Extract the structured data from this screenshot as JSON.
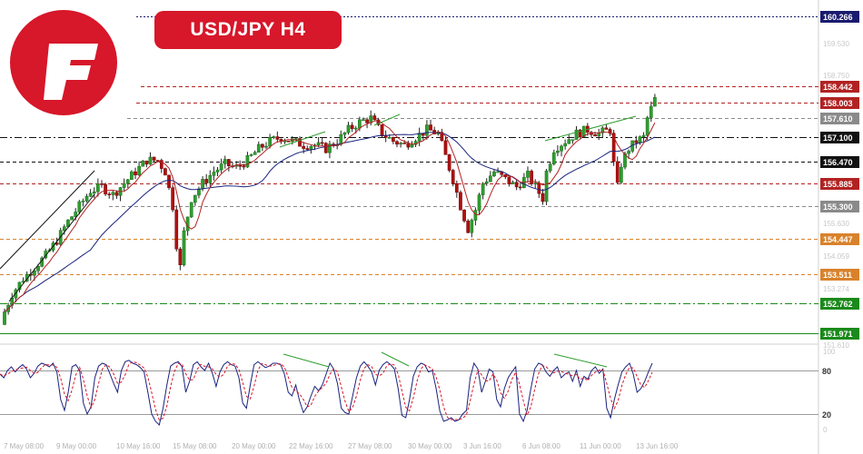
{
  "header": {
    "title": "USD/JPY  H4",
    "logo_icon": "brand-f-logo-icon",
    "brand_color": "#d7172a"
  },
  "chart_data": [
    {
      "type": "candlestick",
      "title": "USD/JPY  H4",
      "ylim": [
        151.5,
        160.6
      ],
      "levels": [
        {
          "value": 160.266,
          "label": "160.266",
          "color": "#1a1a6e",
          "style": "dotted"
        },
        {
          "value": 158.442,
          "label": "158.442",
          "color": "#b22222",
          "style": "dashed"
        },
        {
          "value": 158.003,
          "label": "158.003",
          "color": "#b22222",
          "style": "dashed"
        },
        {
          "value": 157.61,
          "label": "157.610",
          "color": "#8a8a8a",
          "style": "dashed"
        },
        {
          "value": 157.1,
          "label": "157.100",
          "color": "#111111",
          "style": "dashdot"
        },
        {
          "value": 156.47,
          "label": "156.470",
          "color": "#111111",
          "style": "dashed"
        },
        {
          "value": 155.885,
          "label": "155.885",
          "color": "#b22222",
          "style": "dashed"
        },
        {
          "value": 155.3,
          "label": "155.300",
          "color": "#8a8a8a",
          "style": "dashed"
        },
        {
          "value": 154.447,
          "label": "154.447",
          "color": "#d9822b",
          "style": "dashed"
        },
        {
          "value": 153.511,
          "label": "153.511",
          "color": "#d9822b",
          "style": "dashed"
        },
        {
          "value": 152.762,
          "label": "152.762",
          "color": "#1a8a1a",
          "style": "dashdot"
        },
        {
          "value": 151.971,
          "label": "151.971",
          "color": "#1a8a1a",
          "style": "solid"
        }
      ],
      "faint_ticks": [
        "159.530",
        "158.750",
        "155.630",
        "154.059",
        "153.274",
        "151.610"
      ],
      "x_tick_labels": [
        "7 May 08:00",
        "9 May 00:00",
        "10 May 16:00",
        "15 May 08:00",
        "20 May 00:00",
        "22 May 16:00",
        "27 May 08:00",
        "30 May 00:00",
        "3 Jun 16:00",
        "6 Jun 08:00",
        "11 Jun 00:00",
        "13 Jun 16:00"
      ],
      "close_path": [
        [
          0,
          152.3
        ],
        [
          3,
          153.0
        ],
        [
          6,
          153.4
        ],
        [
          9,
          153.7
        ],
        [
          12,
          154.0
        ],
        [
          15,
          154.4
        ],
        [
          18,
          154.9
        ],
        [
          21,
          155.3
        ],
        [
          24,
          155.7
        ],
        [
          27,
          155.8
        ],
        [
          30,
          155.6
        ],
        [
          33,
          155.9
        ],
        [
          36,
          156.2
        ],
        [
          39,
          156.5
        ],
        [
          42,
          156.5
        ],
        [
          44,
          156.2
        ],
        [
          46,
          155.3
        ],
        [
          47,
          154.3
        ],
        [
          48,
          153.7
        ],
        [
          49,
          154.6
        ],
        [
          51,
          155.5
        ],
        [
          54,
          155.9
        ],
        [
          57,
          156.2
        ],
        [
          60,
          156.4
        ],
        [
          63,
          156.3
        ],
        [
          66,
          156.5
        ],
        [
          69,
          156.8
        ],
        [
          72,
          157.0
        ],
        [
          75,
          157.1
        ],
        [
          78,
          157.0
        ],
        [
          81,
          156.9
        ],
        [
          84,
          156.9
        ],
        [
          87,
          156.8
        ],
        [
          90,
          157.0
        ],
        [
          93,
          157.3
        ],
        [
          96,
          157.5
        ],
        [
          99,
          157.6
        ],
        [
          102,
          157.2
        ],
        [
          105,
          157.0
        ],
        [
          108,
          156.9
        ],
        [
          111,
          157.1
        ],
        [
          114,
          157.3
        ],
        [
          117,
          157.2
        ],
        [
          119,
          156.6
        ],
        [
          121,
          156.0
        ],
        [
          123,
          155.3
        ],
        [
          125,
          154.7
        ],
        [
          127,
          155.2
        ],
        [
          129,
          155.9
        ],
        [
          132,
          156.2
        ],
        [
          135,
          156.0
        ],
        [
          138,
          155.8
        ],
        [
          141,
          156.1
        ],
        [
          143,
          155.8
        ],
        [
          145,
          155.5
        ],
        [
          146,
          156.2
        ],
        [
          148,
          156.8
        ],
        [
          151,
          157.0
        ],
        [
          154,
          157.2
        ],
        [
          157,
          157.3
        ],
        [
          160,
          157.2
        ],
        [
          163,
          157.3
        ],
        [
          164,
          156.4
        ],
        [
          165,
          155.8
        ],
        [
          166,
          156.4
        ],
        [
          168,
          156.8
        ],
        [
          170,
          157.0
        ],
        [
          172,
          157.1
        ],
        [
          173,
          157.6
        ],
        [
          175,
          158.1
        ]
      ],
      "candle_count": 175,
      "moving_averages": [
        {
          "color": "#1a237e"
        },
        {
          "color": "#b22222"
        }
      ],
      "trendlines_color": "#2e9e2e",
      "channel_color": "#111111"
    },
    {
      "type": "line",
      "indicator": "stochastic",
      "ylim": [
        0,
        100
      ],
      "levels": [
        {
          "value": 80,
          "label": "80"
        },
        {
          "value": 20,
          "label": "20"
        }
      ],
      "faint_ticks": [
        "100",
        "0"
      ],
      "series": [
        {
          "color": "#1a237e",
          "style": "solid"
        },
        {
          "color": "#d7172a",
          "style": "dashed"
        }
      ],
      "main_values": [
        75,
        70,
        80,
        85,
        78,
        84,
        88,
        82,
        70,
        76,
        86,
        90,
        88,
        85,
        90,
        78,
        40,
        25,
        50,
        85,
        88,
        80,
        35,
        20,
        30,
        70,
        86,
        90,
        88,
        75,
        62,
        50,
        80,
        92,
        94,
        90,
        88,
        84,
        78,
        50,
        20,
        10,
        5,
        28,
        60,
        86,
        90,
        92,
        85,
        50,
        65,
        88,
        92,
        85,
        80,
        90,
        76,
        58,
        78,
        88,
        92,
        88,
        86,
        70,
        35,
        28,
        60,
        88,
        92,
        88,
        84,
        86,
        90,
        90,
        88,
        75,
        50,
        45,
        60,
        38,
        22,
        30,
        45,
        58,
        52,
        60,
        75,
        90,
        82,
        62,
        28,
        22,
        20,
        45,
        70,
        86,
        92,
        86,
        78,
        60,
        80,
        88,
        92,
        88,
        82,
        55,
        18,
        15,
        40,
        72,
        85,
        90,
        88,
        78,
        80,
        55,
        24,
        10,
        12,
        15,
        10,
        12,
        20,
        25,
        70,
        90,
        82,
        50,
        65,
        82,
        78,
        40,
        30,
        55,
        70,
        78,
        85,
        20,
        10,
        25,
        55,
        82,
        90,
        88,
        78,
        72,
        80,
        85,
        70,
        75,
        78,
        65,
        80,
        58,
        72,
        68,
        80,
        85,
        76,
        82,
        28,
        15,
        40,
        60,
        78,
        85,
        90,
        75,
        50,
        55,
        65,
        78,
        90
      ]
    }
  ]
}
